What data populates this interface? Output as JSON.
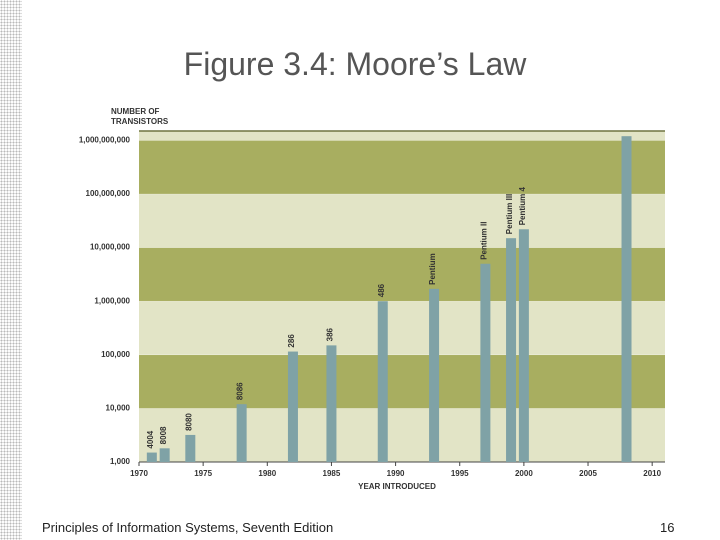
{
  "title": "Figure 3.4: Moore’s Law",
  "footer": "Principles of Information Systems, Seventh Edition",
  "page_number": "16",
  "chart_data": {
    "type": "bar",
    "y_label": "NUMBER OF TRANSISTORS",
    "x_label": "YEAR INTRODUCED",
    "x": [
      1971,
      1972,
      1974,
      1978,
      1982,
      1985,
      1989,
      1993,
      1997,
      1999,
      2000,
      2008
    ],
    "bar_labels": [
      "4004",
      "8008",
      "8080",
      "8086",
      "286",
      "386",
      "486",
      "Pentium",
      "Pentium II",
      "Pentium III",
      "Pentium 4",
      null
    ],
    "values": [
      1500,
      1800,
      3200,
      12000,
      115000,
      150000,
      1000000,
      1700000,
      5000000,
      15000000,
      22000000,
      1200000000
    ],
    "color": "#7fa2a6",
    "band_colors": [
      "#e2e4c6",
      "#a8ae60"
    ],
    "log_scale": true,
    "xlim": [
      1970,
      2011
    ],
    "xticks": [
      1970,
      1975,
      1980,
      1985,
      1990,
      1995,
      2000,
      2005,
      2010
    ],
    "ylim": [
      1000,
      1500000000
    ],
    "yticks": [
      {
        "value": 1000,
        "label": "1,000"
      },
      {
        "value": 10000,
        "label": "10,000"
      },
      {
        "value": 100000,
        "label": "100,000"
      },
      {
        "value": 1000000,
        "label": "1,000,000"
      },
      {
        "value": 10000000,
        "label": "10,000,000"
      },
      {
        "value": 100000000,
        "label": "100,000,000"
      },
      {
        "value": 1000000000,
        "label": "1,000,000,000"
      }
    ]
  }
}
